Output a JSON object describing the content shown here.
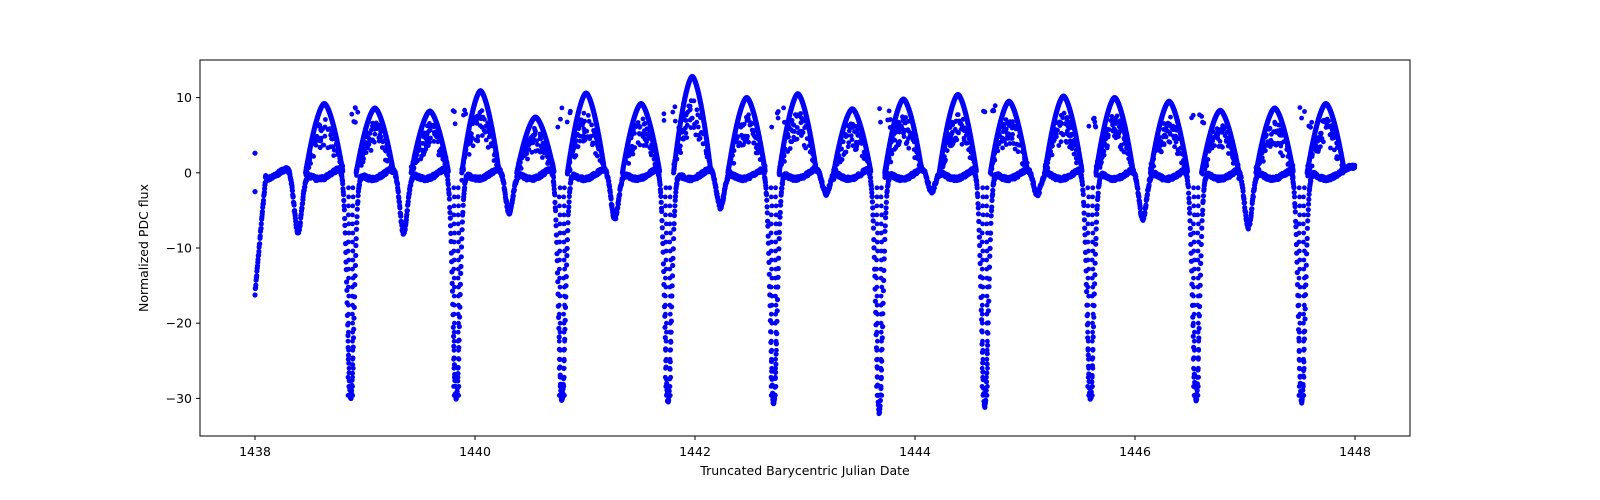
{
  "chart_data": {
    "type": "scatter",
    "title": "",
    "xlabel": "Truncated Barycentric Julian Date",
    "ylabel": "Normalized PDC flux",
    "xlim": [
      1437.5,
      1448.5
    ],
    "ylim": [
      -35,
      15
    ],
    "xticks": [
      1438,
      1440,
      1442,
      1444,
      1446,
      1448
    ],
    "xtick_labels": [
      "1438",
      "1440",
      "1442",
      "1444",
      "1446",
      "1448"
    ],
    "yticks": [
      10,
      0,
      -10,
      -20,
      -30
    ],
    "ytick_labels": [
      "10",
      "0",
      "−10",
      "−20",
      "−30"
    ],
    "grid": false,
    "legend": null,
    "marker_color": "#0000ff",
    "marker": "circle",
    "series": [
      {
        "name": "PDC flux",
        "x_start": 1438.0,
        "x_end": 1448.0,
        "period_days": 0.9636,
        "primary_eclipse_times": [
          1438.87,
          1439.83,
          1440.79,
          1441.755,
          1442.715,
          1443.675,
          1444.635,
          1445.595,
          1446.555,
          1447.515
        ],
        "primary_eclipse_depths": [
          -30.5,
          -30.7,
          -31.0,
          -31.2,
          -31.5,
          -32.6,
          -31.8,
          -30.8,
          -31.0,
          -31.2
        ],
        "secondary_eclipse_times": [
          1438.39,
          1439.35,
          1440.31,
          1441.27,
          1442.23,
          1443.19,
          1444.15,
          1445.11,
          1446.07,
          1447.03
        ],
        "secondary_eclipse_depths": [
          -6.6,
          -6.6,
          -4.0,
          -4.8,
          -3.3,
          -1.5,
          -1.2,
          -1.6,
          -4.9,
          -6.0
        ],
        "peak_maxima": [
          9.2,
          8.6,
          8.2,
          10.9,
          7.4,
          10.6,
          9.2,
          12.8,
          10.0,
          10.5,
          8.5,
          9.8,
          10.4,
          9.5,
          10.2,
          10.0,
          9.5,
          8.3,
          8.6
        ],
        "baseline_level": 0.0,
        "approx_min": -32.6,
        "approx_max": 12.8,
        "start_value": -16.0,
        "end_value": 2.2
      }
    ]
  }
}
